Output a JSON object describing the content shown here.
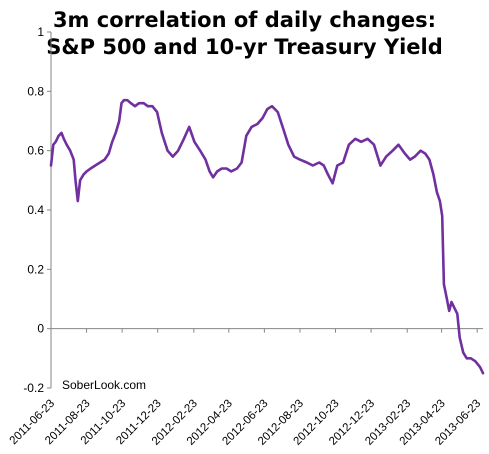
{
  "chart_data": {
    "type": "line",
    "title": [
      "3m correlation of daily changes:",
      "S&P 500 and 10-yr Treasury Yield"
    ],
    "xlabel": "",
    "ylabel": "",
    "ylim": [
      -0.2,
      1
    ],
    "y_ticks": [
      "-0.2",
      "0",
      "0.2",
      "0.4",
      "0.6",
      "0.8",
      "1"
    ],
    "x_ticks": [
      "2011-06-23",
      "2011-08-23",
      "2011-10-23",
      "2011-12-23",
      "2012-02-23",
      "2012-04-23",
      "2012-06-23",
      "2012-08-23",
      "2012-10-23",
      "2012-12-23",
      "2013-02-23",
      "2013-04-23",
      "2013-06-23"
    ],
    "grid": false,
    "legend": "none",
    "annotation": "SoberLook.com",
    "series": [
      {
        "color": "#7030a0",
        "x": [
          "2011-06-23",
          "2011-06-27",
          "2011-07-01",
          "2011-07-06",
          "2011-07-11",
          "2011-07-15",
          "2011-07-20",
          "2011-07-26",
          "2011-08-01",
          "2011-08-04",
          "2011-08-08",
          "2011-08-12",
          "2011-08-18",
          "2011-08-23",
          "2011-08-30",
          "2011-09-07",
          "2011-09-15",
          "2011-09-23",
          "2011-09-30",
          "2011-10-06",
          "2011-10-12",
          "2011-10-18",
          "2011-10-22",
          "2011-10-26",
          "2011-11-01",
          "2011-11-07",
          "2011-11-14",
          "2011-11-21",
          "2011-11-29",
          "2011-12-06",
          "2011-12-14",
          "2011-12-22",
          "2011-12-30",
          "2012-01-09",
          "2012-01-18",
          "2012-01-27",
          "2012-02-06",
          "2012-02-15",
          "2012-02-24",
          "2012-03-05",
          "2012-03-14",
          "2012-03-21",
          "2012-03-27",
          "2012-04-03",
          "2012-04-11",
          "2012-04-19",
          "2012-04-27",
          "2012-05-07",
          "2012-05-15",
          "2012-05-23",
          "2012-06-01",
          "2012-06-11",
          "2012-06-20",
          "2012-06-28",
          "2012-07-06",
          "2012-07-16",
          "2012-07-26",
          "2012-08-03",
          "2012-08-13",
          "2012-08-23",
          "2012-09-04",
          "2012-09-14",
          "2012-09-25",
          "2012-10-03",
          "2012-10-10",
          "2012-10-18",
          "2012-10-26",
          "2012-11-05",
          "2012-11-15",
          "2012-11-26",
          "2012-12-06",
          "2012-12-17",
          "2012-12-28",
          "2013-01-08",
          "2013-01-18",
          "2013-01-29",
          "2013-02-08",
          "2013-02-19",
          "2013-02-28",
          "2013-03-08",
          "2013-03-18",
          "2013-03-26",
          "2013-04-02",
          "2013-04-09",
          "2013-04-15",
          "2013-04-20",
          "2013-04-24",
          "2013-04-27",
          "2013-05-02",
          "2013-05-06",
          "2013-05-10",
          "2013-05-15",
          "2013-05-20",
          "2013-05-24",
          "2013-05-30",
          "2013-06-05",
          "2013-06-12",
          "2013-06-20",
          "2013-06-28",
          "2013-07-03"
        ],
        "values": [
          0.55,
          0.62,
          0.63,
          0.65,
          0.66,
          0.64,
          0.62,
          0.6,
          0.57,
          0.5,
          0.43,
          0.5,
          0.52,
          0.53,
          0.54,
          0.55,
          0.56,
          0.57,
          0.59,
          0.63,
          0.66,
          0.7,
          0.76,
          0.77,
          0.77,
          0.76,
          0.75,
          0.76,
          0.76,
          0.75,
          0.75,
          0.73,
          0.66,
          0.6,
          0.58,
          0.6,
          0.64,
          0.68,
          0.63,
          0.6,
          0.57,
          0.53,
          0.51,
          0.53,
          0.54,
          0.54,
          0.53,
          0.54,
          0.56,
          0.65,
          0.68,
          0.69,
          0.71,
          0.74,
          0.75,
          0.73,
          0.67,
          0.62,
          0.58,
          0.57,
          0.56,
          0.55,
          0.56,
          0.55,
          0.52,
          0.49,
          0.55,
          0.56,
          0.62,
          0.64,
          0.63,
          0.64,
          0.62,
          0.55,
          0.58,
          0.6,
          0.62,
          0.59,
          0.57,
          0.58,
          0.6,
          0.59,
          0.57,
          0.52,
          0.46,
          0.43,
          0.38,
          0.15,
          0.1,
          0.06,
          0.09,
          0.07,
          0.05,
          -0.03,
          -0.08,
          -0.1,
          -0.1,
          -0.11,
          -0.13,
          -0.15
        ]
      }
    ]
  }
}
